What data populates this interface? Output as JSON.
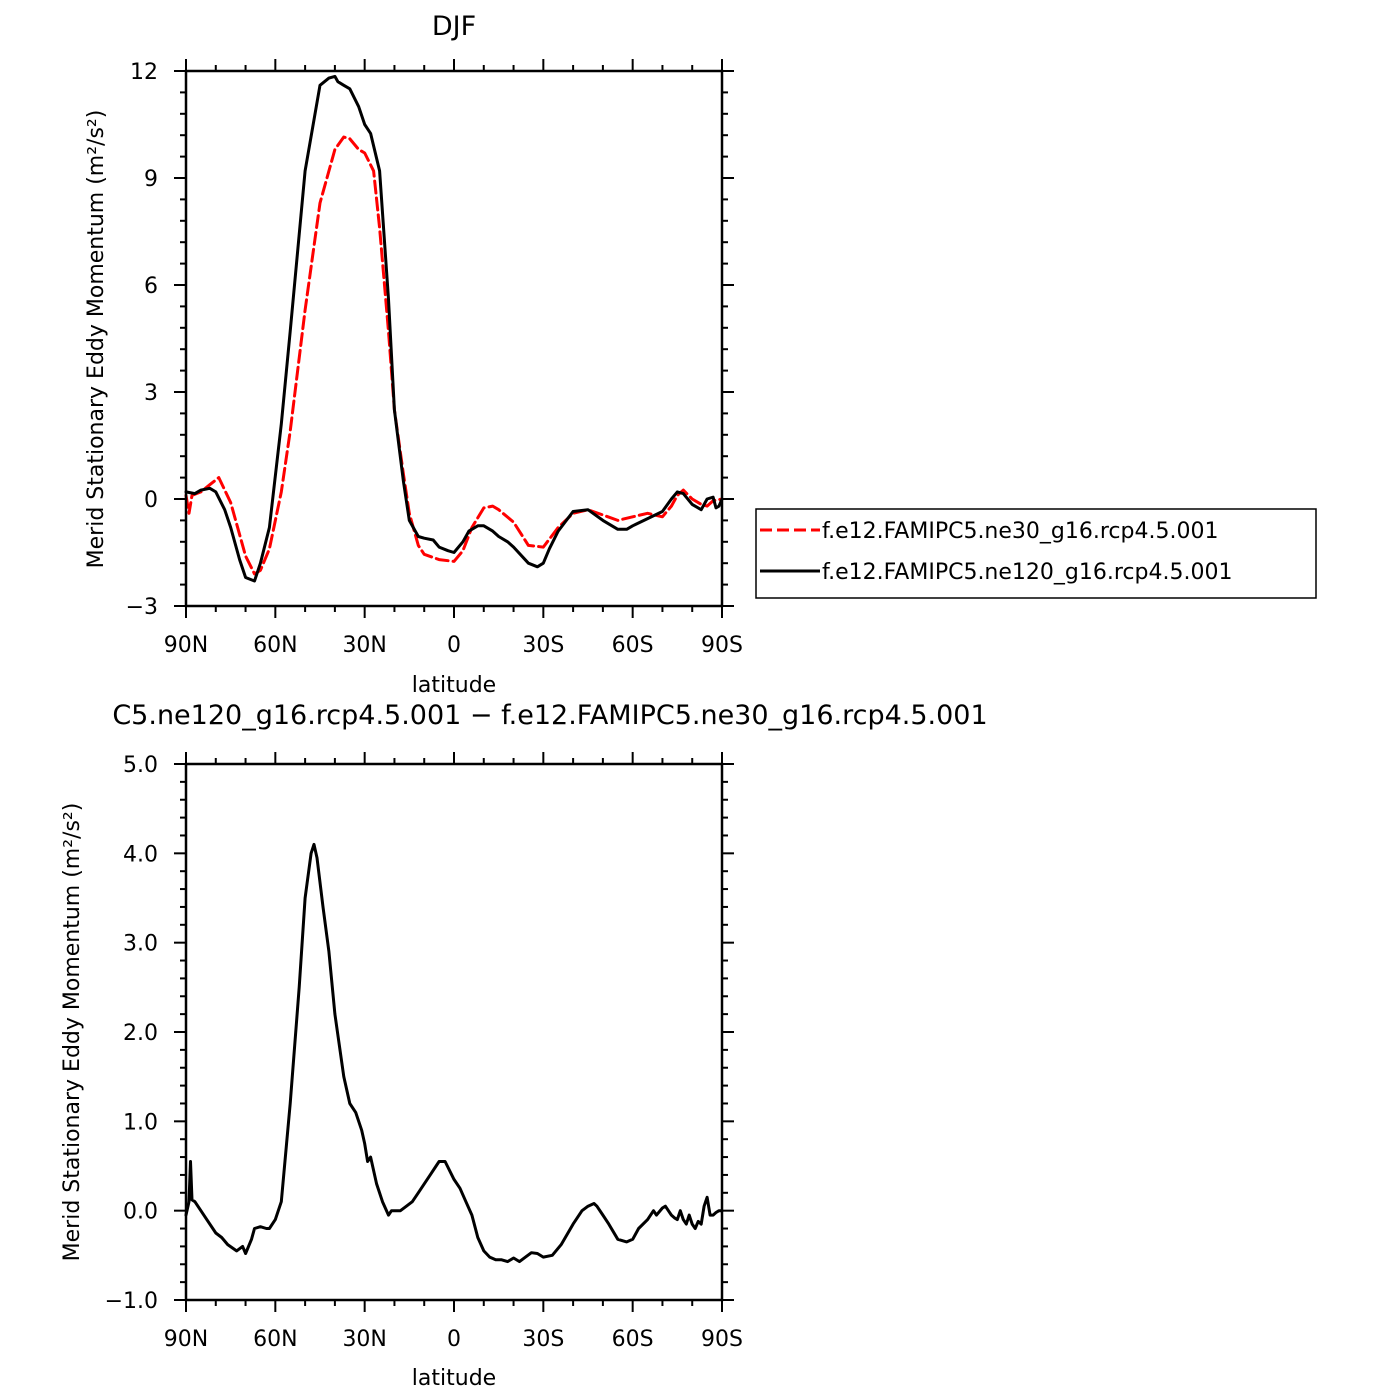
{
  "chart_data": [
    {
      "type": "line",
      "title": "DJF",
      "xlabel": "latitude",
      "ylabel": "Merid Stationary Eddy Momentum (m²/s²)",
      "xlim": [
        90,
        -90
      ],
      "ylim": [
        -3,
        12
      ],
      "x_axis_note": "positive = N, negative = S",
      "xticks": [
        90,
        60,
        30,
        0,
        -30,
        -60,
        -90
      ],
      "xtick_labels": [
        "90N",
        "60N",
        "30N",
        "0",
        "30S",
        "60S",
        "90S"
      ],
      "yticks": [
        -3,
        0,
        3,
        6,
        9,
        12
      ],
      "ytick_labels": [
        "−3",
        "0",
        "3",
        "6",
        "9",
        "12"
      ],
      "legend_position": "right",
      "series": [
        {
          "name": "f.e12.FAMIPC5.ne30_g16.rcp4.5.001",
          "color": "#ff0000",
          "dash": "dashed",
          "x": [
            90,
            89,
            88,
            85,
            82,
            79,
            75,
            70,
            67,
            65,
            62,
            58,
            55,
            50,
            45,
            40,
            37,
            35,
            32,
            30,
            27,
            25,
            22,
            20,
            17,
            15,
            12,
            10,
            5,
            0,
            -3,
            -6,
            -10,
            -13,
            -15,
            -20,
            -25,
            -30,
            -35,
            -40,
            -45,
            -50,
            -55,
            -60,
            -65,
            -70,
            -73,
            -75,
            -77,
            -80,
            -83,
            -85,
            -87,
            -90
          ],
          "y": [
            0.1,
            -0.4,
            0.1,
            0.2,
            0.4,
            0.6,
            -0.1,
            -1.6,
            -2.1,
            -2.0,
            -1.4,
            0.2,
            1.9,
            5.3,
            8.3,
            9.8,
            10.15,
            10.1,
            9.8,
            9.7,
            9.2,
            7.6,
            4.7,
            2.5,
            0.7,
            -0.4,
            -1.3,
            -1.55,
            -1.7,
            -1.75,
            -1.45,
            -0.8,
            -0.25,
            -0.2,
            -0.3,
            -0.65,
            -1.3,
            -1.35,
            -0.8,
            -0.4,
            -0.3,
            -0.45,
            -0.6,
            -0.5,
            -0.4,
            -0.5,
            -0.2,
            0.1,
            0.25,
            0.0,
            -0.15,
            -0.2,
            -0.05,
            0.0
          ]
        },
        {
          "name": "f.e12.FAMIPC5.ne120_g16.rcp4.5.001",
          "color": "#000000",
          "dash": "solid",
          "x": [
            90,
            87,
            85,
            82,
            80,
            77,
            75,
            72,
            70,
            67,
            65,
            62,
            58,
            55,
            50,
            45,
            42,
            40,
            39,
            37,
            35,
            32,
            30,
            28,
            25,
            22,
            20,
            17,
            15,
            12,
            10,
            7,
            5,
            2,
            0,
            -3,
            -5,
            -8,
            -10,
            -13,
            -15,
            -18,
            -20,
            -25,
            -28,
            -30,
            -32,
            -35,
            -40,
            -45,
            -50,
            -55,
            -58,
            -60,
            -65,
            -70,
            -73,
            -75,
            -77,
            -80,
            -83,
            -85,
            -87,
            -88,
            -89,
            -90
          ],
          "y": [
            0.2,
            0.15,
            0.25,
            0.3,
            0.2,
            -0.3,
            -0.8,
            -1.7,
            -2.2,
            -2.3,
            -1.8,
            -0.8,
            2.1,
            4.7,
            9.2,
            11.6,
            11.8,
            11.85,
            11.7,
            11.6,
            11.5,
            11.0,
            10.5,
            10.25,
            9.2,
            5.6,
            2.5,
            0.5,
            -0.6,
            -1.05,
            -1.1,
            -1.15,
            -1.35,
            -1.45,
            -1.5,
            -1.2,
            -0.9,
            -0.75,
            -0.75,
            -0.9,
            -1.05,
            -1.2,
            -1.35,
            -1.8,
            -1.9,
            -1.8,
            -1.4,
            -0.9,
            -0.35,
            -0.3,
            -0.6,
            -0.85,
            -0.85,
            -0.75,
            -0.55,
            -0.35,
            0.0,
            0.2,
            0.15,
            -0.15,
            -0.3,
            0.0,
            0.05,
            -0.25,
            -0.2,
            0.0
          ]
        }
      ]
    },
    {
      "type": "line",
      "title": "C5.ne120_g16.rcp4.5.001 − f.e12.FAMIPC5.ne30_g16.rcp4.5.001",
      "xlabel": "latitude",
      "ylabel": "Merid Stationary Eddy Momentum (m²/s²)",
      "xlim": [
        90,
        -90
      ],
      "ylim": [
        -1.0,
        5.0
      ],
      "xticks": [
        90,
        60,
        30,
        0,
        -30,
        -60,
        -90
      ],
      "xtick_labels": [
        "90N",
        "60N",
        "30N",
        "0",
        "30S",
        "60S",
        "90S"
      ],
      "yticks": [
        -1.0,
        0.0,
        1.0,
        2.0,
        3.0,
        4.0,
        5.0
      ],
      "ytick_labels": [
        "−1.0",
        "0.0",
        "1.0",
        "2.0",
        "3.0",
        "4.0",
        "5.0"
      ],
      "series": [
        {
          "color": "#000000",
          "dash": "solid",
          "x": [
            90,
            89,
            88.5,
            88,
            87,
            85,
            83,
            80,
            78,
            76,
            73,
            71,
            70,
            68,
            67,
            65,
            63,
            62,
            60,
            58,
            55,
            52,
            50,
            48,
            47,
            46,
            44,
            42,
            40,
            37,
            35,
            33,
            31,
            30,
            29,
            28,
            26,
            24,
            22,
            21,
            20,
            18,
            16,
            14,
            12,
            10,
            8,
            6,
            5,
            4,
            3,
            0,
            -2,
            -4,
            -6,
            -8,
            -10,
            -12,
            -14,
            -16,
            -18,
            -20,
            -22,
            -24,
            -26,
            -28,
            -30,
            -33,
            -36,
            -40,
            -43,
            -45,
            -47,
            -48,
            -50,
            -52,
            -55,
            -58,
            -60,
            -62,
            -65,
            -67,
            -68,
            -70,
            -71,
            -72,
            -73,
            -74,
            -75,
            -76,
            -77,
            -78,
            -79,
            -80,
            -81,
            -82,
            -83,
            -84,
            -85,
            -86,
            -87,
            -88,
            -89,
            -90
          ],
          "y": [
            -0.05,
            0.1,
            0.55,
            0.12,
            0.1,
            0.0,
            -0.1,
            -0.25,
            -0.3,
            -0.38,
            -0.45,
            -0.4,
            -0.48,
            -0.32,
            -0.2,
            -0.18,
            -0.2,
            -0.2,
            -0.1,
            0.1,
            1.2,
            2.5,
            3.5,
            4.0,
            4.1,
            3.95,
            3.4,
            2.9,
            2.2,
            1.5,
            1.2,
            1.1,
            0.9,
            0.75,
            0.55,
            0.6,
            0.3,
            0.1,
            -0.05,
            0.0,
            0.0,
            0.0,
            0.05,
            0.1,
            0.2,
            0.3,
            0.4,
            0.5,
            0.55,
            0.55,
            0.55,
            0.35,
            0.25,
            0.1,
            -0.05,
            -0.3,
            -0.45,
            -0.52,
            -0.55,
            -0.55,
            -0.57,
            -0.53,
            -0.57,
            -0.52,
            -0.47,
            -0.48,
            -0.52,
            -0.5,
            -0.38,
            -0.15,
            0.0,
            0.05,
            0.08,
            0.05,
            -0.05,
            -0.15,
            -0.32,
            -0.35,
            -0.32,
            -0.2,
            -0.1,
            0.0,
            -0.05,
            0.03,
            0.05,
            0.0,
            -0.05,
            -0.08,
            -0.1,
            0.0,
            -0.1,
            -0.15,
            -0.05,
            -0.15,
            -0.2,
            -0.12,
            -0.15,
            0.05,
            0.15,
            -0.05,
            -0.05,
            -0.02,
            0.0,
            0.0
          ]
        }
      ]
    }
  ]
}
